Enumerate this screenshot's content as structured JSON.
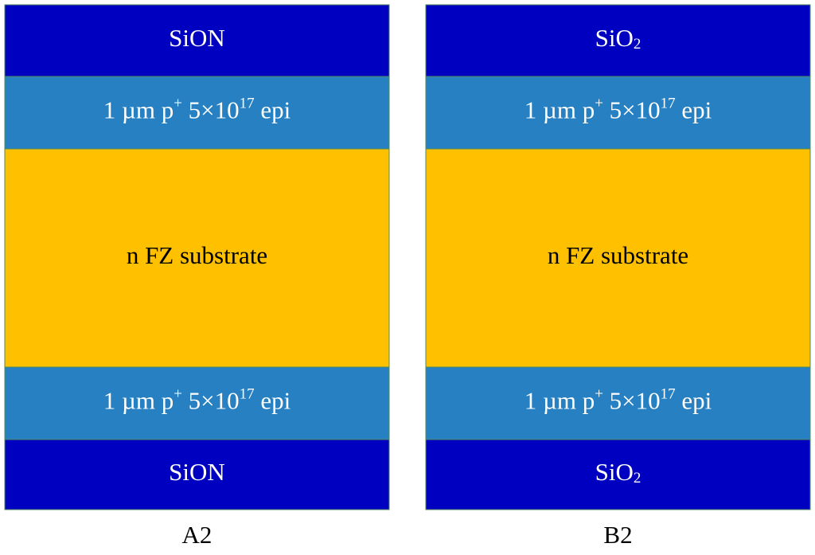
{
  "panels": [
    {
      "caption": "A2",
      "layers": [
        {
          "color": "#0000c0",
          "text_color": "#ffffff",
          "parts": [
            {
              "text": "SiON"
            }
          ]
        },
        {
          "color": "#2680c2",
          "text_color": "#ffffff",
          "parts": [
            {
              "text": "1 µm p"
            },
            {
              "sup": "+"
            },
            {
              "text": " 5×10"
            },
            {
              "sup": "17"
            },
            {
              "text": " epi"
            }
          ]
        },
        {
          "color": "#ffc000",
          "text_color": "#000000",
          "parts": [
            {
              "text": "n FZ substrate"
            }
          ]
        },
        {
          "color": "#2680c2",
          "text_color": "#ffffff",
          "parts": [
            {
              "text": "1 µm p"
            },
            {
              "sup": "+"
            },
            {
              "text": " 5×10"
            },
            {
              "sup": "17"
            },
            {
              "text": " epi"
            }
          ]
        },
        {
          "color": "#0000c0",
          "text_color": "#ffffff",
          "parts": [
            {
              "text": "SiON"
            }
          ]
        }
      ]
    },
    {
      "caption": "B2",
      "layers": [
        {
          "color": "#0000c0",
          "text_color": "#ffffff",
          "parts": [
            {
              "text": "SiO"
            },
            {
              "sub": "2"
            }
          ]
        },
        {
          "color": "#2680c2",
          "text_color": "#ffffff",
          "parts": [
            {
              "text": "1 µm p"
            },
            {
              "sup": "+"
            },
            {
              "text": " 5×10"
            },
            {
              "sup": "17"
            },
            {
              "text": " epi"
            }
          ]
        },
        {
          "color": "#ffc000",
          "text_color": "#000000",
          "parts": [
            {
              "text": "n FZ substrate"
            }
          ]
        },
        {
          "color": "#2680c2",
          "text_color": "#ffffff",
          "parts": [
            {
              "text": "1 µm p"
            },
            {
              "sup": "+"
            },
            {
              "text": " 5×10"
            },
            {
              "sup": "17"
            },
            {
              "text": " epi"
            }
          ]
        },
        {
          "color": "#0000c0",
          "text_color": "#ffffff",
          "parts": [
            {
              "text": "SiO"
            },
            {
              "sub": "2"
            }
          ]
        }
      ]
    }
  ]
}
